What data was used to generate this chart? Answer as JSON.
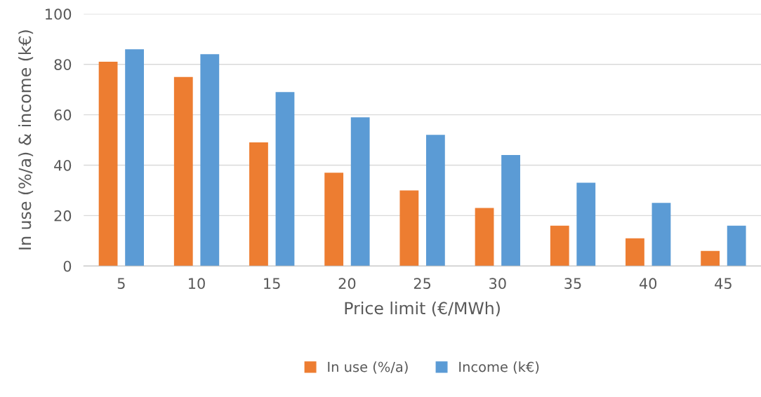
{
  "chart_data": {
    "type": "bar",
    "xlabel": "Price limit (€/MWh)",
    "ylabel": "In use (%/a) & income (k€)",
    "categories": [
      "5",
      "10",
      "15",
      "20",
      "25",
      "30",
      "35",
      "40",
      "45"
    ],
    "series": [
      {
        "name": "In use (%/a)",
        "color": "#ed7d31",
        "values": [
          81,
          75,
          49,
          37,
          30,
          23,
          16,
          11,
          6
        ]
      },
      {
        "name": "Income (k€)",
        "color": "#5b9bd5",
        "values": [
          86,
          84,
          69,
          59,
          52,
          44,
          33,
          25,
          16
        ]
      }
    ],
    "ylim": [
      0,
      100
    ],
    "yticks": [
      0,
      20,
      40,
      60,
      80,
      100
    ],
    "grid": "y",
    "legend": "bottom"
  }
}
